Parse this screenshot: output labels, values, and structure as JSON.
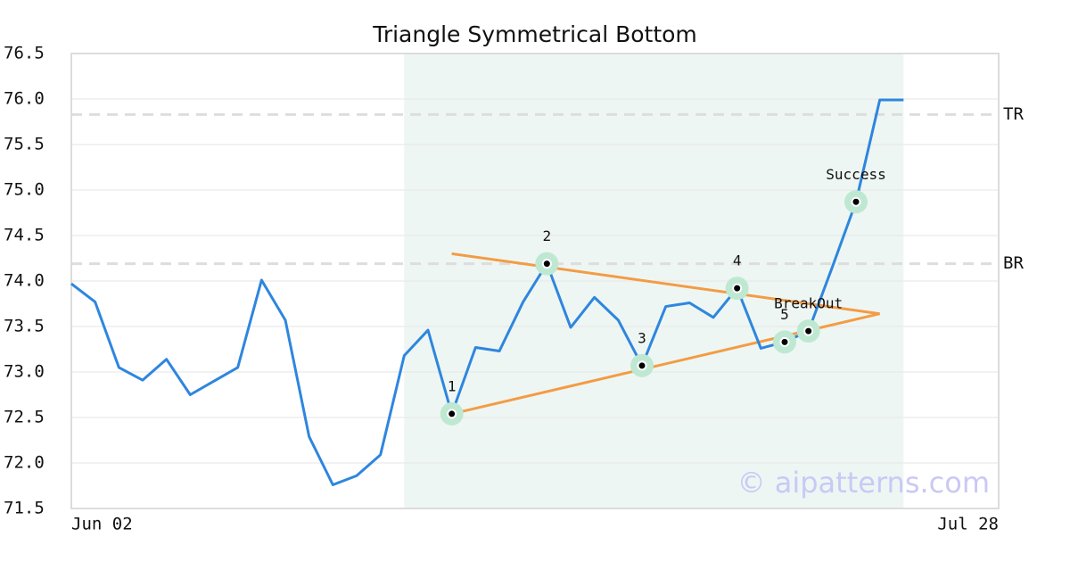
{
  "chart_data": {
    "type": "line",
    "title": "Triangle Symmetrical Bottom",
    "watermark": "© aipatterns.com",
    "x": [
      0,
      1,
      2,
      3,
      4,
      5,
      6,
      7,
      8,
      9,
      10,
      11,
      12,
      13,
      14,
      15,
      16,
      17,
      18,
      19,
      20,
      21,
      22,
      23,
      24,
      25,
      26,
      27,
      28,
      29,
      30,
      31,
      32,
      33,
      34,
      35
    ],
    "series": [
      {
        "color": "#2e86de",
        "values": [
          73.97,
          73.77,
          73.05,
          72.91,
          73.14,
          72.75,
          72.9,
          73.05,
          74.01,
          73.57,
          72.29,
          71.76,
          71.86,
          72.09,
          73.18,
          73.46,
          72.54,
          73.27,
          73.23,
          73.77,
          74.19,
          73.49,
          73.82,
          73.57,
          73.07,
          73.72,
          73.76,
          73.6,
          73.92,
          73.26,
          73.33,
          73.45,
          74.15,
          74.87,
          75.99,
          75.99
        ]
      }
    ],
    "xlim": [
      0,
      39
    ],
    "xticks": [
      {
        "value": 0,
        "label": "Jun 02"
      },
      {
        "value": 39,
        "label": "Jul 28"
      }
    ],
    "ylim": [
      71.5,
      76.5
    ],
    "yticks": [
      71.5,
      {
        "value": 72,
        "label": "72.0"
      },
      72.5,
      {
        "value": 73,
        "label": "73.0"
      },
      73.5,
      {
        "value": 74,
        "label": "74.0"
      },
      74.5,
      {
        "value": 75,
        "label": "75.0"
      },
      75.5,
      {
        "value": 76,
        "label": "76.0"
      },
      76.5
    ],
    "grid": true,
    "shade": {
      "x": [
        14,
        35
      ],
      "color": "#eef6f3"
    },
    "levels": [
      {
        "label": "TR",
        "value": 75.83
      },
      {
        "label": "BR",
        "value": 74.19
      }
    ],
    "triangle": {
      "color": "#f39c45",
      "lines": [
        {
          "x": [
            16,
            34
          ],
          "values": [
            74.3,
            73.64
          ]
        },
        {
          "x": [
            16,
            34
          ],
          "values": [
            72.54,
            73.64
          ]
        }
      ]
    },
    "annotations": [
      {
        "label": "1",
        "x": 16,
        "y": 72.54
      },
      {
        "label": "2",
        "x": 20,
        "y": 74.19
      },
      {
        "label": "3",
        "x": 24,
        "y": 73.07
      },
      {
        "label": "4",
        "x": 28,
        "y": 73.92
      },
      {
        "label": "5",
        "x": 30,
        "y": 73.33
      },
      {
        "label": "BreakOut",
        "x": 31,
        "y": 73.45
      },
      {
        "label": "Success",
        "x": 33,
        "y": 74.87
      }
    ]
  }
}
